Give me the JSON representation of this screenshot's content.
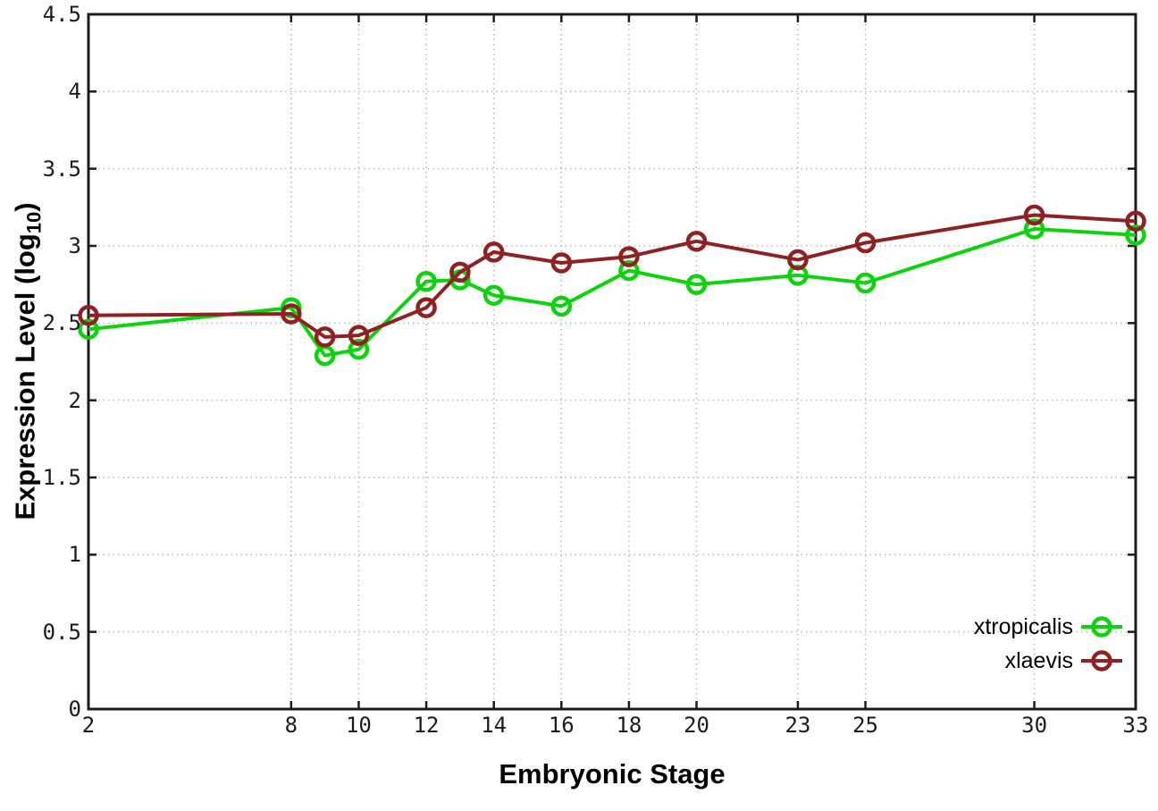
{
  "figure": {
    "background": "#ffffff",
    "border_color": "#1c1c1c",
    "grid_color": "#b8b8b8"
  },
  "axes": {
    "x": {
      "title": "Embryonic Stage",
      "tick_labels": [
        "2",
        "8",
        "10",
        "12",
        "14",
        "16",
        "18",
        "20",
        "23",
        "25",
        "30",
        "33"
      ],
      "tick_values": [
        2,
        8,
        10,
        12,
        14,
        16,
        18,
        20,
        23,
        25,
        30,
        33
      ]
    },
    "y": {
      "title_prefix": "Expression Level (log",
      "title_subscript": "10",
      "title_suffix": ")",
      "tick_labels": [
        "0",
        "0.5",
        "1",
        "1.5",
        "2",
        "2.5",
        "3",
        "3.5",
        "4",
        "4.5"
      ],
      "tick_values": [
        0,
        0.5,
        1,
        1.5,
        2,
        2.5,
        3,
        3.5,
        4,
        4.5
      ]
    }
  },
  "chart_data": {
    "type": "line",
    "title": "",
    "xlabel": "Embryonic Stage",
    "ylabel": "Expression Level (log10)",
    "xlim": [
      2,
      33
    ],
    "ylim": [
      0,
      4.5
    ],
    "grid": true,
    "legend_position": "inside-bottom-right",
    "marker": "open-circle",
    "x": [
      2,
      8,
      9,
      10,
      12,
      13,
      14,
      16,
      18,
      20,
      23,
      25,
      30,
      33
    ],
    "series": [
      {
        "name": "xtropicalis",
        "color": "#0dd30d",
        "values": [
          2.46,
          2.6,
          2.29,
          2.33,
          2.77,
          2.78,
          2.68,
          2.61,
          2.84,
          2.75,
          2.81,
          2.76,
          3.11,
          3.07
        ]
      },
      {
        "name": "xlaevis",
        "color": "#8e2121",
        "values": [
          2.55,
          2.56,
          2.41,
          2.42,
          2.6,
          2.83,
          2.96,
          2.89,
          2.93,
          3.03,
          2.91,
          3.02,
          3.2,
          3.16
        ]
      }
    ]
  }
}
